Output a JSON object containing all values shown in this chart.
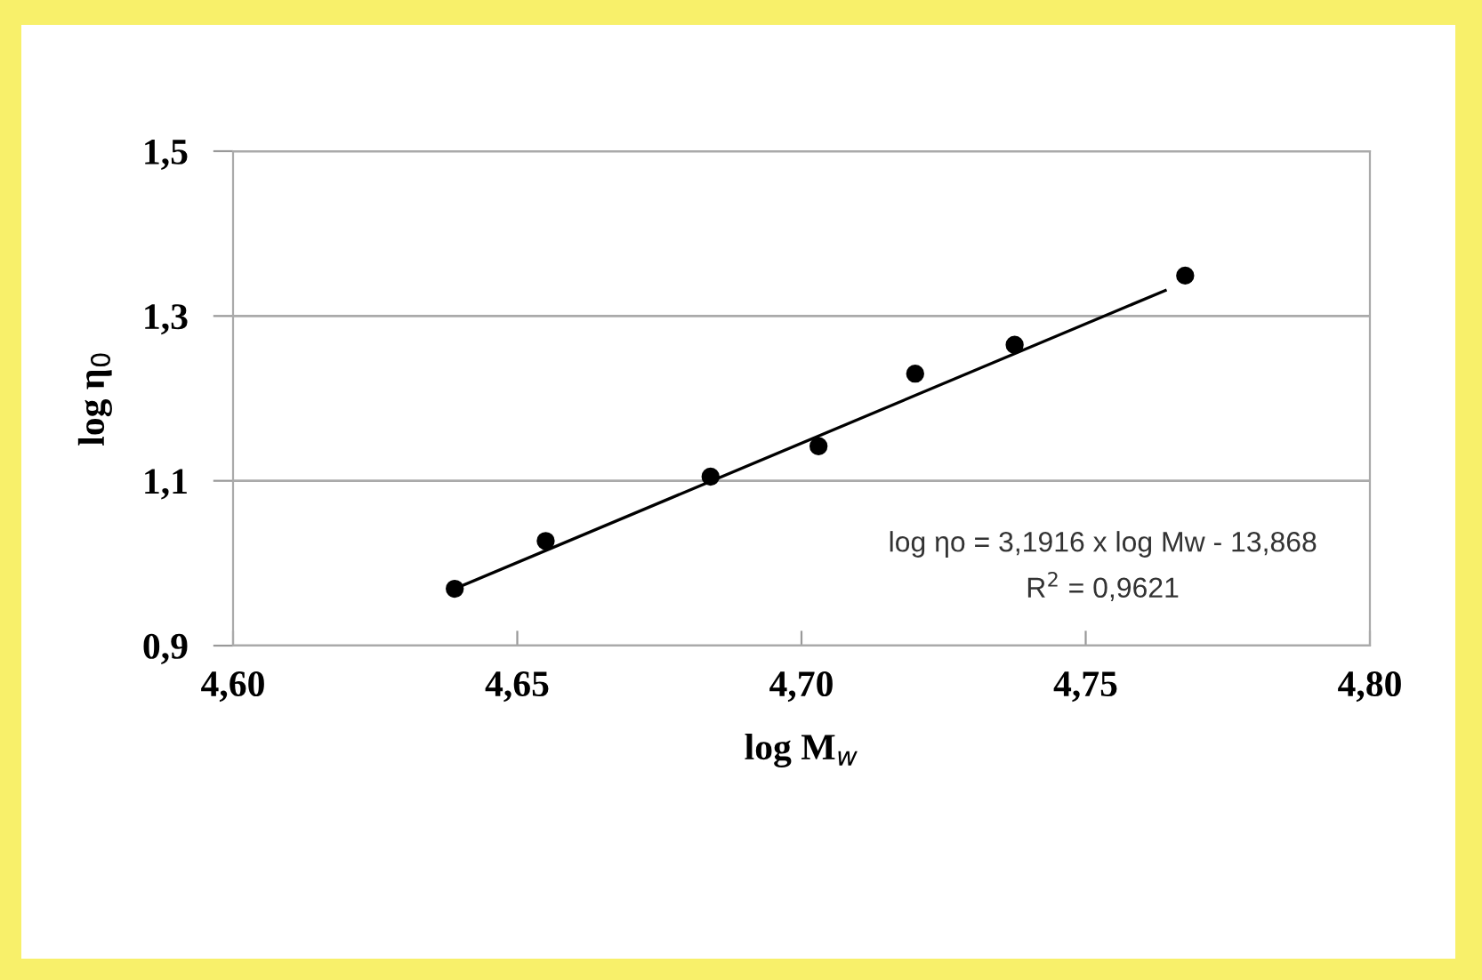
{
  "chart_data": {
    "type": "scatter",
    "xlabel": "log M$_{w}$",
    "ylabel": "log η$_{0}$",
    "x": [
      4.639,
      4.655,
      4.684,
      4.703,
      4.72,
      4.7375,
      4.7675
    ],
    "series": [
      {
        "color": "#000000",
        "values": [
          0.969,
          1.027,
          1.105,
          1.142,
          1.23,
          1.265,
          1.349
        ],
        "marker": "circle"
      },
      {
        "type": "line",
        "color": "#000000",
        "x": [
          4.639,
          4.764
        ],
        "values": [
          0.969,
          1.331
        ],
        "line_style": "solid"
      }
    ],
    "xlim": [
      4.6,
      4.8
    ],
    "ylim": [
      0.9,
      1.5
    ],
    "xticks": [
      {
        "value": 4.6,
        "label": "4,60"
      },
      {
        "value": 4.65,
        "label": "4,65"
      },
      {
        "value": 4.7,
        "label": "4,70"
      },
      {
        "value": 4.75,
        "label": "4,75"
      },
      {
        "value": 4.8,
        "label": "4,80"
      }
    ],
    "yticks": [
      {
        "value": 0.9,
        "label": "0,9"
      },
      {
        "value": 1.1,
        "label": "1,1"
      },
      {
        "value": 1.3,
        "label": "1,3"
      },
      {
        "value": 1.5,
        "label": "1,5"
      }
    ],
    "grid": "y",
    "legend": false,
    "annotations": [
      "log ηo = 3,1916 x log Mw - 13,868",
      "R$^{2}$ = 0,9621"
    ]
  }
}
